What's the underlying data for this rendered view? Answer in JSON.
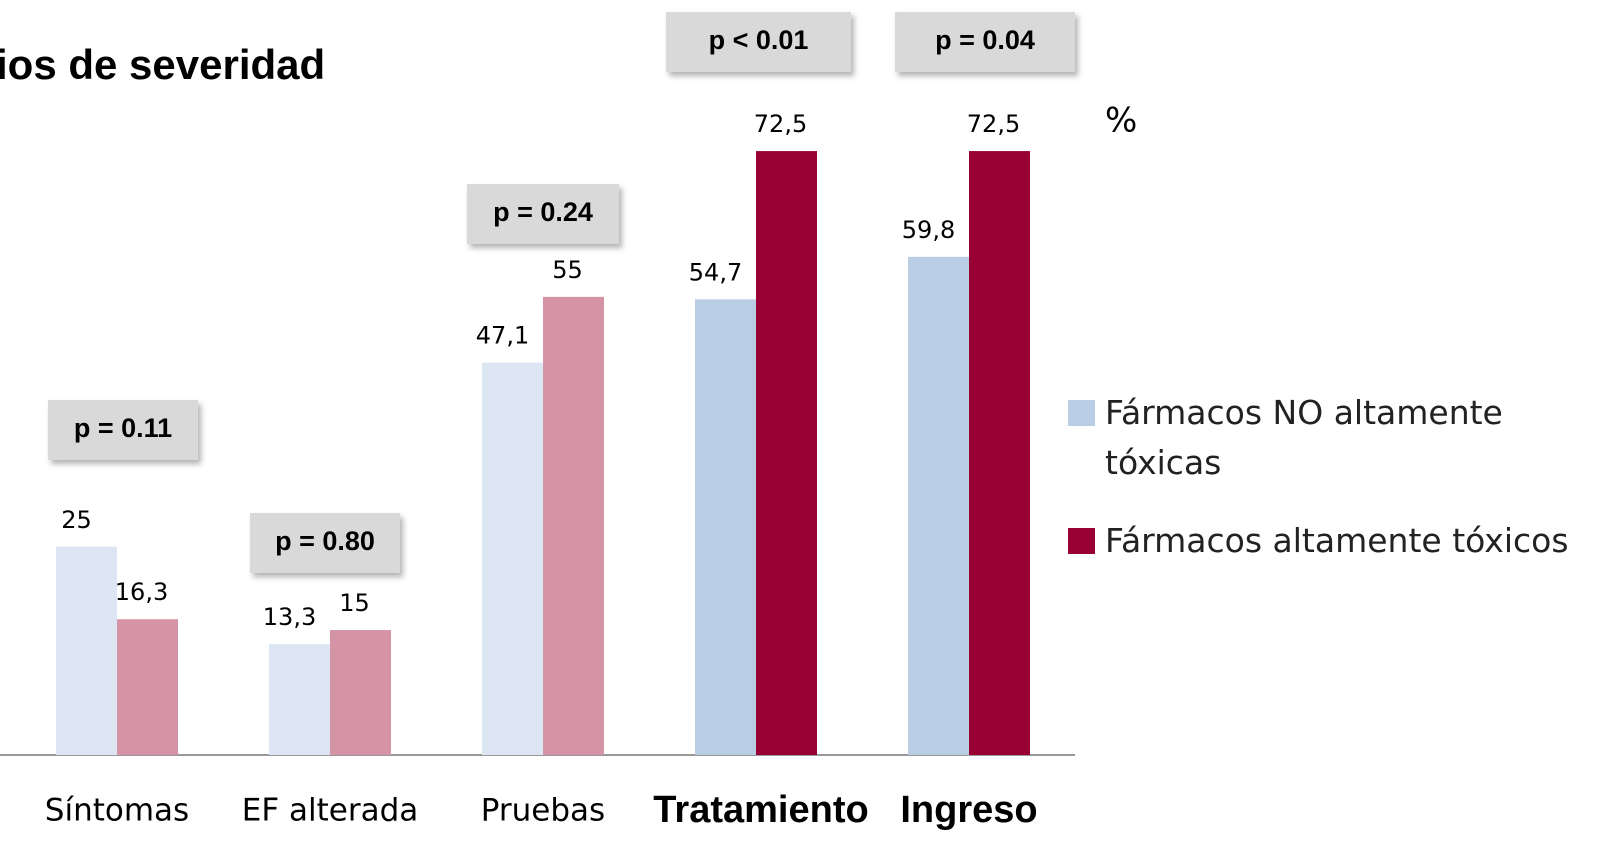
{
  "chart_data": {
    "type": "bar",
    "title": "ios de severidad",
    "unit_label": "%",
    "categories": [
      "Síntomas",
      "EF alterada",
      "Pruebas",
      "Tratamiento",
      "Ingreso"
    ],
    "bold_categories": [
      false,
      false,
      false,
      true,
      true
    ],
    "annotations": [
      "p = 0.11",
      "p = 0.80",
      "p = 0.24",
      "p < 0.01",
      "p = 0.04"
    ],
    "series": [
      {
        "name": "Fármacos NO altamente tóxicas",
        "color": "#b9cde5",
        "colors": [
          "#dce6f2",
          "#dce6f2",
          "#dce6f2",
          "#b9cde5",
          "#b9cde5"
        ],
        "values": [
          25,
          13.3,
          47.1,
          54.7,
          59.8
        ],
        "value_labels": [
          "25",
          "13,3",
          "47,1",
          "54,7",
          "59,8"
        ]
      },
      {
        "name": "Fármacos altamente tóxicos",
        "color": "#990033",
        "colors": [
          "#d494a6",
          "#d494a6",
          "#d494a6",
          "#990033",
          "#990033"
        ],
        "values": [
          16.3,
          15,
          55,
          72.5,
          72.5
        ],
        "value_labels": [
          "16,3",
          "15",
          "55",
          "72,5",
          "72,5"
        ]
      }
    ],
    "ylim": [
      0,
      80
    ]
  }
}
